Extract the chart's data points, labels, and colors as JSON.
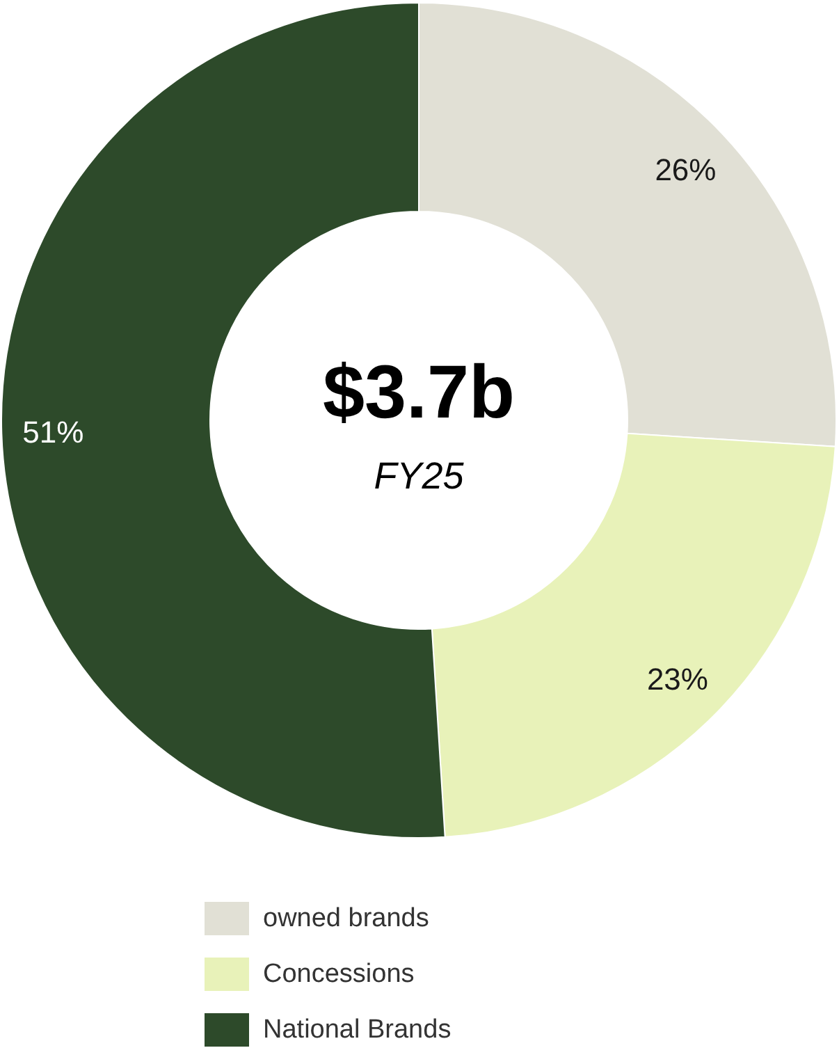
{
  "chart_data": {
    "type": "donut",
    "categories": [
      "owned brands",
      "Concessions",
      "National Brands"
    ],
    "values": [
      26,
      23,
      51
    ],
    "colors": [
      "#e1e0d5",
      "#e8f2b9",
      "#2d4a2a"
    ],
    "value_labels": [
      "26%",
      "23%",
      "51%"
    ],
    "legend": "bottom",
    "annotations": [
      "$3.7b",
      "FY25"
    ]
  }
}
